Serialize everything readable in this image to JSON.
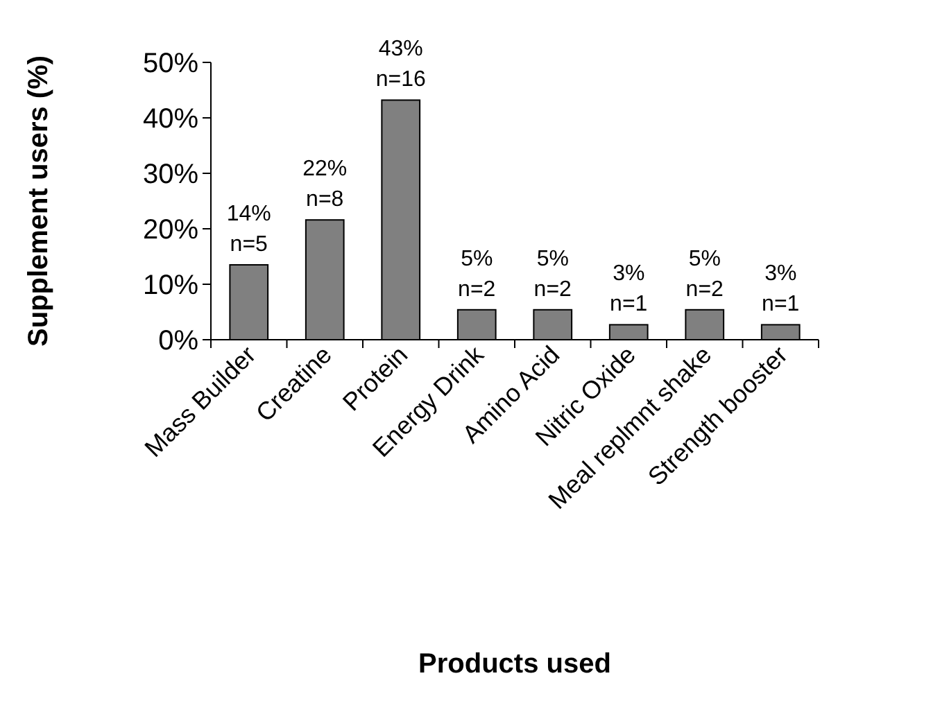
{
  "chart_data": {
    "type": "bar",
    "xlabel": "Products used",
    "ylabel": "Supplement users (%)",
    "categories": [
      "Mass Builder",
      "Creatine",
      "Protein",
      "Energy Drink",
      "Amino Acid",
      "Nitric Oxide",
      "Meal replmnt shake",
      "Strength booster"
    ],
    "values": [
      13.5,
      21.6,
      43.2,
      5.4,
      5.4,
      2.7,
      5.4,
      2.7
    ],
    "value_labels": [
      "14%\nn=5",
      "22%\nn=8",
      "43%\nn=16",
      "5%\nn=2",
      "5%\nn=2",
      "3%\nn=1",
      "5%\nn=2",
      "3%\nn=1"
    ],
    "color": "#808080",
    "ylim": [
      0,
      50
    ],
    "yticks": [
      {
        "value": 0,
        "label": "0%"
      },
      {
        "value": 10,
        "label": "10%"
      },
      {
        "value": 20,
        "label": "20%"
      },
      {
        "value": 30,
        "label": "30%"
      },
      {
        "value": 40,
        "label": "40%"
      },
      {
        "value": 50,
        "label": "50%"
      }
    ],
    "grid": false
  }
}
